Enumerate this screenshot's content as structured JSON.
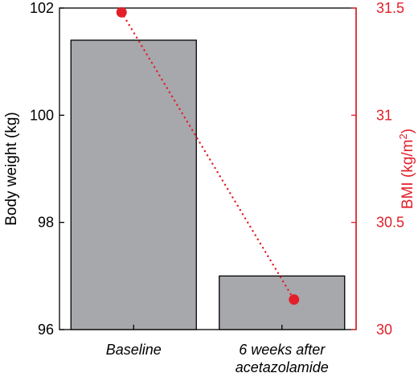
{
  "chart_data": {
    "type": "bar",
    "categories": [
      [
        "Baseline"
      ],
      [
        "6 weeks after",
        "acetazolamide"
      ]
    ],
    "series": [
      {
        "axis": "left",
        "kind": "bar",
        "values": [
          101.4,
          97.0
        ],
        "color": "#a7a8ac"
      },
      {
        "axis": "right",
        "kind": "line-dotted-markers",
        "values": [
          31.48,
          30.14
        ],
        "color": "#e3202a"
      }
    ],
    "yleft": {
      "label": "Body weight (kg)",
      "lim": [
        96,
        102
      ],
      "ticks": [
        96,
        98,
        100,
        102
      ],
      "color": "#000000"
    },
    "yright": {
      "label_main": "BMI (kg/m",
      "label_sup": "2",
      "label_end": ")",
      "lim": [
        30,
        31.5
      ],
      "ticks": [
        "30",
        "30.5",
        "31",
        "31.5"
      ],
      "tick_values": [
        30,
        30.5,
        31,
        31.5
      ],
      "color": "#e3202a"
    },
    "legend": "none",
    "grid": false
  }
}
